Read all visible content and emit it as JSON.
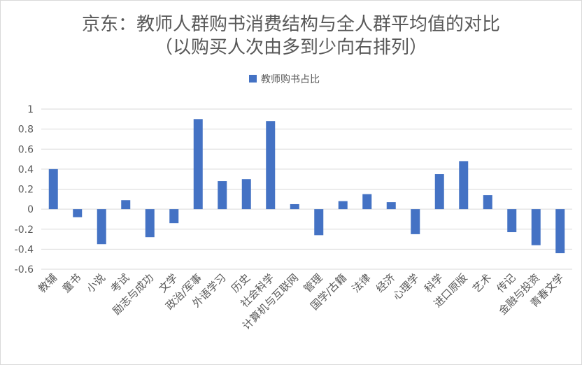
{
  "chart_data": {
    "type": "bar",
    "title_lines": [
      "京东：教师人群购书消费结构与全人群平均值的对比",
      "（以购买人次由多到少向右排列）"
    ],
    "xlabel": "",
    "ylabel": "",
    "ylim": [
      -0.6,
      1
    ],
    "yticks": [
      "1",
      "0.8",
      "0.6",
      "0.4",
      "0.2",
      "0",
      "-0.2",
      "-0.4",
      "-0.6"
    ],
    "ytick_values": [
      1,
      0.8,
      0.6,
      0.4,
      0.2,
      0,
      -0.2,
      -0.4,
      -0.6
    ],
    "grid": true,
    "legend_position": "top",
    "categories": [
      "教辅",
      "童书",
      "小说",
      "考试",
      "励志与成功",
      "文学",
      "政治/军事",
      "外语学习",
      "历史",
      "社会科学",
      "计算机与互联网",
      "管理",
      "国学/古籍",
      "法律",
      "经济",
      "心理学",
      "科学",
      "进口原版",
      "艺术",
      "传记",
      "金融与投资",
      "青春文学"
    ],
    "series": [
      {
        "name": "教师购书占比",
        "color": "#4472c4",
        "values": [
          0.4,
          -0.08,
          -0.35,
          0.09,
          -0.28,
          -0.14,
          0.9,
          0.28,
          0.3,
          0.88,
          0.05,
          -0.26,
          0.08,
          0.15,
          0.07,
          -0.25,
          0.35,
          0.48,
          0.14,
          -0.23,
          -0.36,
          -0.44
        ]
      }
    ]
  }
}
